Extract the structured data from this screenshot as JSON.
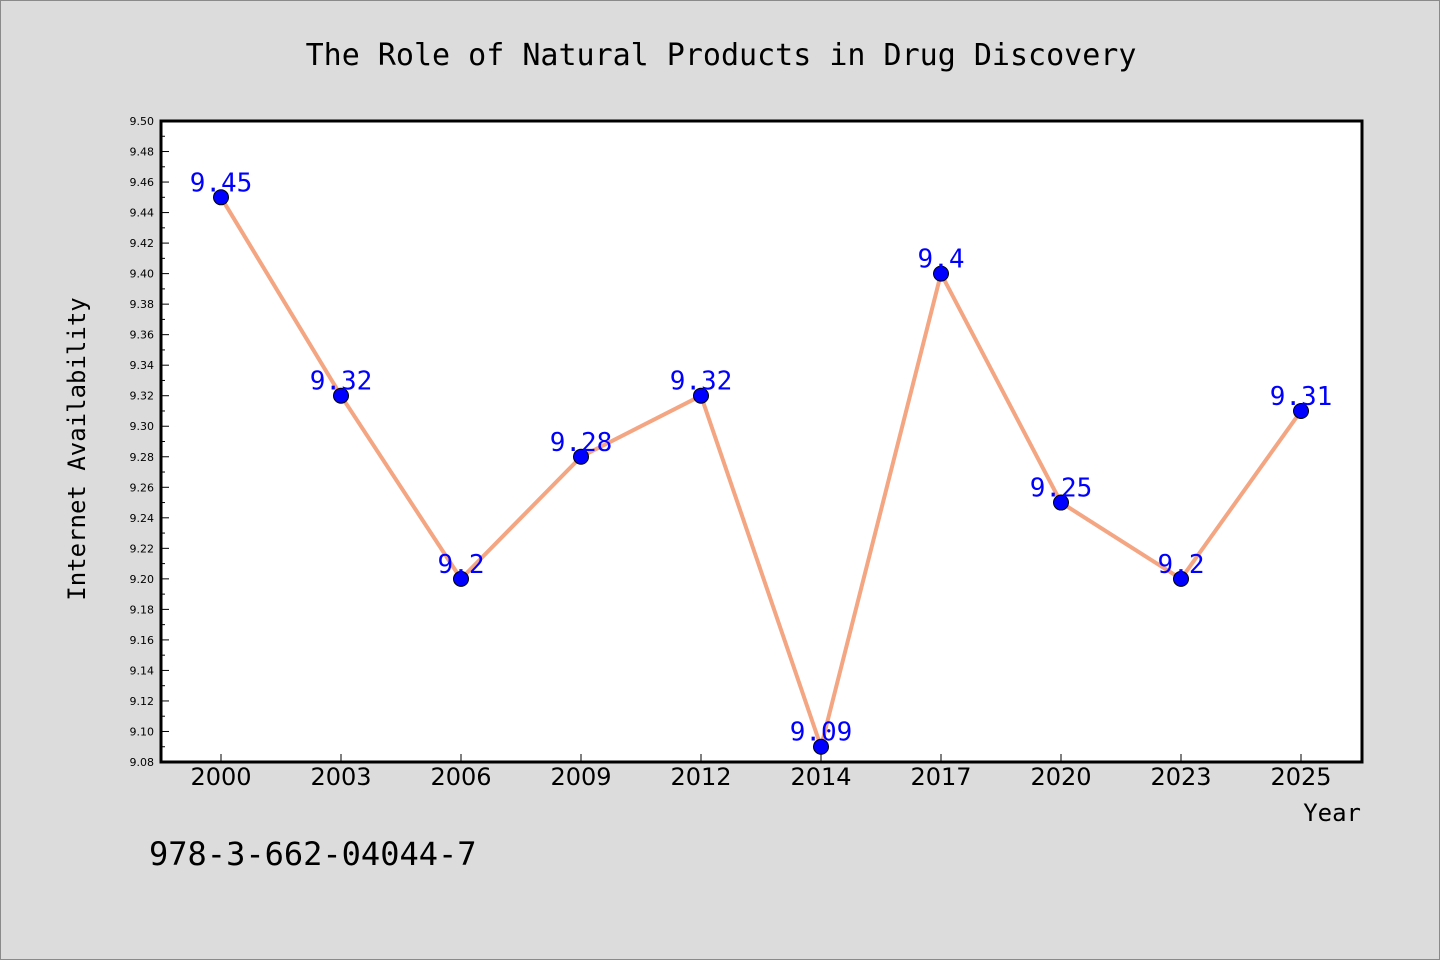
{
  "chart_data": {
    "type": "line",
    "title": "The Role of Natural Products in Drug Discovery",
    "xlabel": "Year",
    "ylabel": "Internet Availability",
    "categories": [
      "2000",
      "2003",
      "2006",
      "2009",
      "2012",
      "2014",
      "2017",
      "2020",
      "2023",
      "2025"
    ],
    "series": [
      {
        "values": [
          9.45,
          9.32,
          9.2,
          9.28,
          9.32,
          9.09,
          9.4,
          9.25,
          9.2,
          9.31
        ],
        "data_labels": [
          "9.45",
          "9.32",
          "9.2",
          "9.28",
          "9.32",
          "9.09",
          "9.4",
          "9.25",
          "9.2",
          "9.31"
        ]
      }
    ],
    "ylim": [
      9.08,
      9.5
    ],
    "ytick_step": 0.02,
    "ytick_labels": [
      "9.08",
      "9.10",
      "9.12",
      "9.14",
      "9.16",
      "9.18",
      "9.20",
      "9.22",
      "9.24",
      "9.26",
      "9.28",
      "9.30",
      "9.32",
      "9.34",
      "9.36",
      "9.38",
      "9.40",
      "9.42",
      "9.44",
      "9.46",
      "9.48",
      "9.50"
    ],
    "grid": false,
    "legend": "none",
    "colors": {
      "line": "#f4a582",
      "marker": "#0000ff",
      "marker_edge": "#000000",
      "data_label": "#0000ff",
      "background": "#dcdcdc",
      "plot_background": "#ffffff"
    }
  },
  "annotation": {
    "isbn": "978-3-662-04044-7"
  }
}
